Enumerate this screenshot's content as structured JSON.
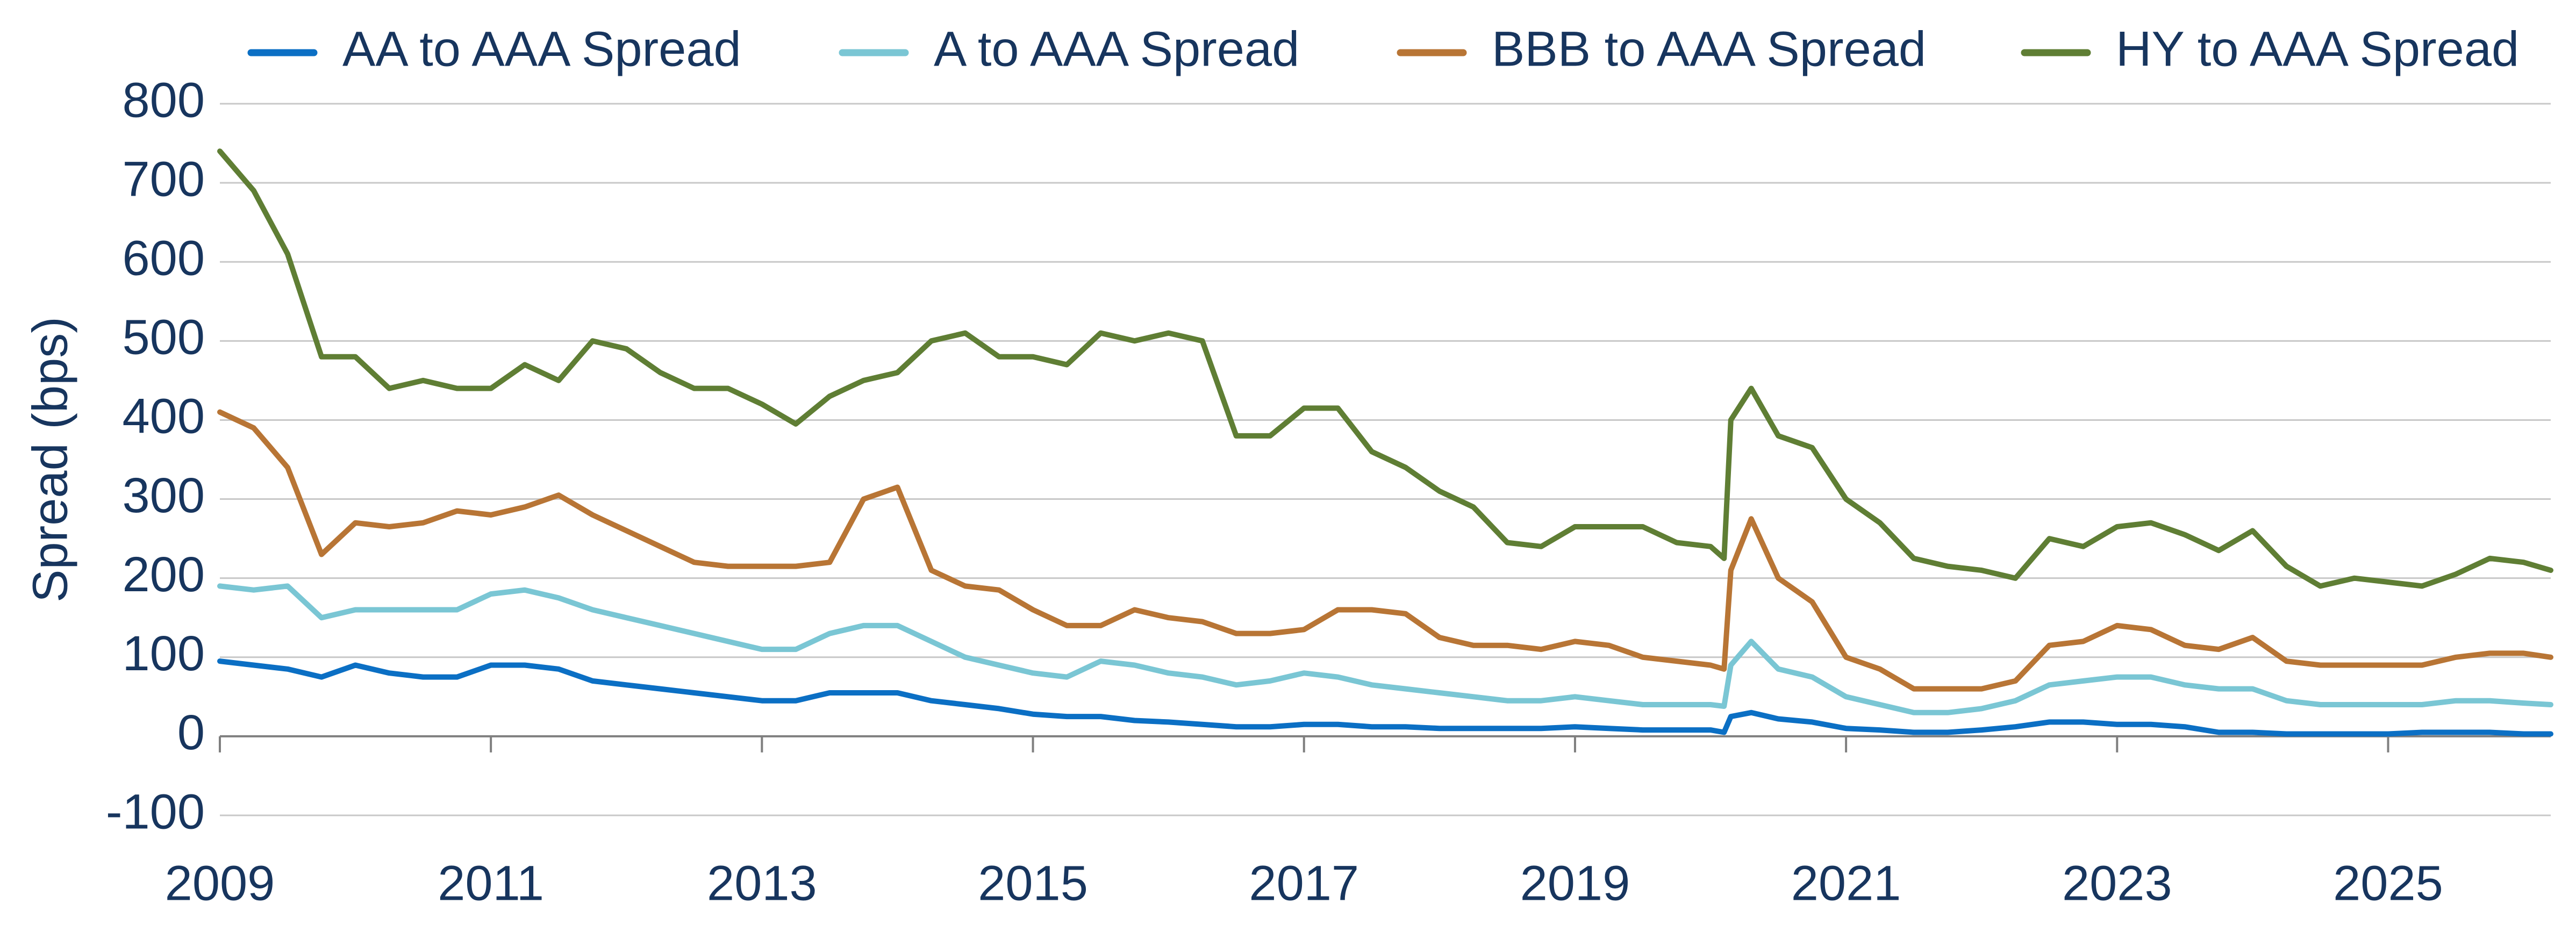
{
  "chart_data": {
    "type": "line",
    "y_label": "Spread (bps)",
    "legend": "top",
    "grid": true,
    "xlim": [
      2009,
      2026.2
    ],
    "xticks": [
      2009,
      2011,
      2013,
      2015,
      2017,
      2019,
      2021,
      2023,
      2025
    ],
    "ylim": [
      -100,
      800
    ],
    "yticks": [
      -100,
      0,
      100,
      200,
      300,
      400,
      500,
      600,
      700,
      800
    ],
    "x": [
      2009.0,
      2009.25,
      2009.5,
      2009.75,
      2010.0,
      2010.25,
      2010.5,
      2010.75,
      2011.0,
      2011.25,
      2011.5,
      2011.75,
      2012.0,
      2012.25,
      2012.5,
      2012.75,
      2013.0,
      2013.25,
      2013.5,
      2013.75,
      2014.0,
      2014.25,
      2014.5,
      2014.75,
      2015.0,
      2015.25,
      2015.5,
      2015.75,
      2016.0,
      2016.25,
      2016.5,
      2016.75,
      2017.0,
      2017.25,
      2017.5,
      2017.75,
      2018.0,
      2018.25,
      2018.5,
      2018.75,
      2019.0,
      2019.25,
      2019.5,
      2019.75,
      2020.0,
      2020.1,
      2020.15,
      2020.3,
      2020.5,
      2020.75,
      2021.0,
      2021.25,
      2021.5,
      2021.75,
      2022.0,
      2022.25,
      2022.5,
      2022.75,
      2023.0,
      2023.25,
      2023.5,
      2023.75,
      2024.0,
      2024.25,
      2024.5,
      2024.75,
      2025.0,
      2025.25,
      2025.5,
      2025.75,
      2026.0,
      2026.2
    ],
    "series": [
      {
        "name": "AA to AAA Spread",
        "color": "#0b6fc4",
        "values": [
          95,
          90,
          85,
          75,
          90,
          80,
          75,
          75,
          90,
          90,
          85,
          70,
          65,
          60,
          55,
          50,
          45,
          45,
          55,
          55,
          55,
          45,
          40,
          35,
          28,
          25,
          25,
          20,
          18,
          15,
          12,
          12,
          15,
          15,
          12,
          12,
          10,
          10,
          10,
          10,
          12,
          10,
          8,
          8,
          8,
          5,
          25,
          30,
          22,
          18,
          10,
          8,
          5,
          5,
          8,
          12,
          18,
          18,
          15,
          15,
          12,
          5,
          5,
          3,
          3,
          3,
          3,
          5,
          5,
          5,
          3,
          3
        ]
      },
      {
        "name": "A to AAA Spread",
        "color": "#7ac6d4",
        "values": [
          190,
          185,
          190,
          150,
          160,
          160,
          160,
          160,
          180,
          185,
          175,
          160,
          150,
          140,
          130,
          120,
          110,
          110,
          130,
          140,
          140,
          120,
          100,
          90,
          80,
          75,
          95,
          90,
          80,
          75,
          65,
          70,
          80,
          75,
          65,
          60,
          55,
          50,
          45,
          45,
          50,
          45,
          40,
          40,
          40,
          38,
          90,
          120,
          85,
          75,
          50,
          40,
          30,
          30,
          35,
          45,
          65,
          70,
          75,
          75,
          65,
          60,
          60,
          45,
          40,
          40,
          40,
          40,
          45,
          45,
          42,
          40
        ]
      },
      {
        "name": "BBB to AAA Spread",
        "color": "#b87535",
        "values": [
          410,
          390,
          340,
          230,
          270,
          265,
          270,
          285,
          280,
          290,
          305,
          280,
          260,
          240,
          220,
          215,
          215,
          215,
          220,
          300,
          315,
          210,
          190,
          185,
          160,
          140,
          140,
          160,
          150,
          145,
          130,
          130,
          135,
          160,
          160,
          155,
          125,
          115,
          115,
          110,
          120,
          115,
          100,
          95,
          90,
          85,
          210,
          275,
          200,
          170,
          100,
          85,
          60,
          60,
          60,
          70,
          115,
          120,
          140,
          135,
          115,
          110,
          125,
          95,
          90,
          90,
          90,
          90,
          100,
          105,
          105,
          100
        ]
      },
      {
        "name": "HY to AAA Spread",
        "color": "#5f7e34",
        "values": [
          740,
          690,
          610,
          480,
          480,
          440,
          450,
          440,
          440,
          470,
          450,
          500,
          490,
          460,
          440,
          440,
          420,
          395,
          430,
          450,
          460,
          500,
          510,
          480,
          480,
          470,
          510,
          500,
          510,
          500,
          380,
          380,
          415,
          415,
          360,
          340,
          310,
          290,
          245,
          240,
          265,
          265,
          265,
          245,
          240,
          225,
          400,
          440,
          380,
          365,
          300,
          270,
          225,
          215,
          210,
          200,
          250,
          240,
          265,
          270,
          255,
          235,
          260,
          215,
          190,
          200,
          195,
          190,
          205,
          225,
          220,
          210
        ]
      }
    ]
  }
}
